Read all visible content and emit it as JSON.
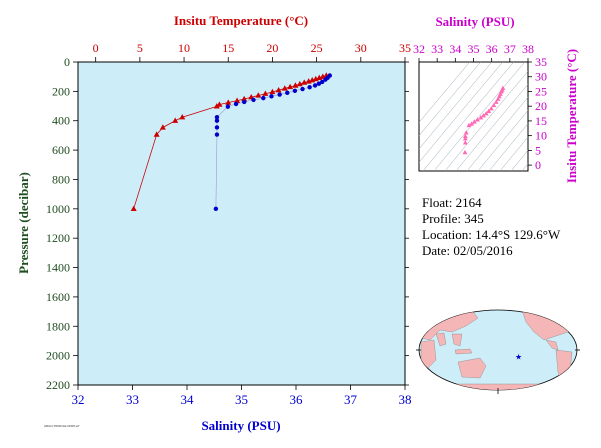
{
  "colors": {
    "panel_bg": "#cdeef9",
    "temperature": "#cc0000",
    "salinity": "#0000cc",
    "ts_axis": "#cc00cc",
    "ts_points": "#ff69b4",
    "pressure_axis": "#1f4d1f",
    "land": "#f4b6b6",
    "ocean": "#cdeef9"
  },
  "info": {
    "float_label": "Float:",
    "float_value": "2164",
    "profile_label": "Profile:",
    "profile_value": "345",
    "location_label": "Location:",
    "location_value": "14.4°S  129.6°W",
    "date_label": "Date:",
    "date_value": "02/05/2016"
  },
  "footer_note": "ARGO PROFILE DISPLAY",
  "chart_data": [
    {
      "type": "line",
      "title": "",
      "xlabel_top": "Insitu Temperature (°C)",
      "xlabel_bottom": "Salinity (PSU)",
      "ylabel": "Pressure (decibar)",
      "temp_lim": [
        -2,
        35
      ],
      "temp_ticks": [
        0,
        5,
        10,
        15,
        20,
        25,
        30,
        35
      ],
      "sal_lim": [
        32,
        38
      ],
      "sal_ticks": [
        32,
        33,
        34,
        35,
        36,
        37,
        38
      ],
      "ylim": [
        0,
        2200
      ],
      "yticks": [
        0,
        200,
        400,
        600,
        800,
        1000,
        1200,
        1400,
        1600,
        1800,
        2000,
        2200
      ],
      "y_inverted": true,
      "grid": false,
      "series": [
        {
          "name": "Insitu Temperature",
          "marker": "triangle",
          "x": [
            26.1,
            25.7,
            25.3,
            24.9,
            24.5,
            24.1,
            23.6,
            23.1,
            22.6,
            22.0,
            21.4,
            20.7,
            20.0,
            19.2,
            18.4,
            17.6,
            16.8,
            16.0,
            15.0,
            14.0,
            13.7,
            9.8,
            9.0,
            7.6,
            6.9,
            4.3
          ],
          "y": [
            92,
            100,
            108,
            116,
            124,
            132,
            140,
            150,
            160,
            170,
            180,
            192,
            204,
            216,
            228,
            240,
            252,
            264,
            276,
            290,
            302,
            376,
            400,
            446,
            494,
            1000
          ]
        },
        {
          "name": "Salinity",
          "marker": "circle",
          "x": [
            36.62,
            36.58,
            36.54,
            36.48,
            36.42,
            36.35,
            36.25,
            36.12,
            35.98,
            35.84,
            35.7,
            35.55,
            35.4,
            35.22,
            35.05,
            34.9,
            34.75,
            34.55,
            34.55,
            34.55,
            34.55,
            34.53
          ],
          "y": [
            92,
            108,
            120,
            136,
            148,
            160,
            172,
            184,
            196,
            210,
            222,
            234,
            246,
            258,
            272,
            286,
            304,
            376,
            400,
            446,
            494,
            1000
          ]
        }
      ]
    },
    {
      "type": "scatter",
      "title": "",
      "xlabel": "Salinity (PSU)",
      "ylabel": "Insitu Temperature (°C)",
      "xlim": [
        32,
        38
      ],
      "ylim": [
        -2,
        35
      ],
      "xticks": [
        32,
        33,
        34,
        35,
        36,
        37,
        38
      ],
      "yticks": [
        0,
        5,
        10,
        15,
        20,
        25,
        30,
        35
      ],
      "background_contours": "density isopycnals",
      "points": {
        "sal": [
          36.62,
          36.58,
          36.54,
          36.48,
          36.42,
          36.35,
          36.25,
          36.12,
          35.98,
          35.84,
          35.7,
          35.55,
          35.4,
          35.22,
          35.05,
          34.9,
          34.75,
          34.6,
          34.55,
          34.55,
          34.55,
          34.53
        ],
        "temp": [
          26.1,
          25.5,
          24.9,
          24.1,
          23.3,
          22.4,
          21.4,
          20.3,
          19.2,
          18.3,
          17.5,
          16.8,
          16.1,
          15.4,
          14.7,
          14.0,
          13.5,
          11.0,
          9.8,
          9.0,
          7.6,
          4.3
        ]
      }
    }
  ],
  "map": {
    "marker_symbol": "★",
    "lon_deg": -129.6,
    "lat_deg": -14.4
  }
}
